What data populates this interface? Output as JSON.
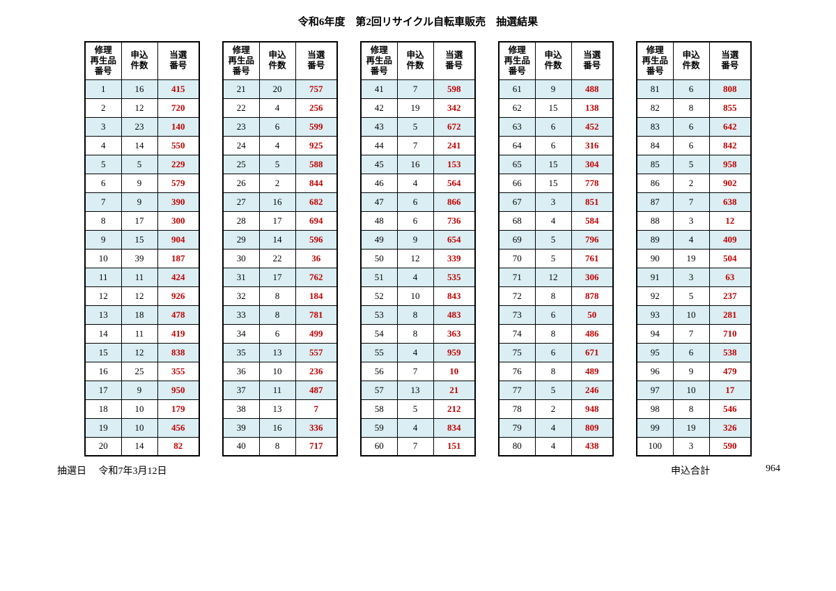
{
  "title": "令和6年度　第2回リサイクル自転車販売　抽選結果",
  "headers": {
    "col1": "修理\n再生品\n番号",
    "col2": "申込\n件数",
    "col3": "当選\n番号"
  },
  "footer": {
    "date_label": "抽選日",
    "date_value": "令和7年3月12日",
    "total_label": "申込合計",
    "total_value": "964"
  },
  "styles": {
    "shade_color": "#daeef3",
    "win_color": "#c00000",
    "border_color": "#000000",
    "background": "#ffffff"
  },
  "tables": [
    [
      [
        1,
        16,
        415
      ],
      [
        2,
        12,
        720
      ],
      [
        3,
        23,
        140
      ],
      [
        4,
        14,
        550
      ],
      [
        5,
        5,
        229
      ],
      [
        6,
        9,
        579
      ],
      [
        7,
        9,
        390
      ],
      [
        8,
        17,
        300
      ],
      [
        9,
        15,
        904
      ],
      [
        10,
        39,
        187
      ],
      [
        11,
        11,
        424
      ],
      [
        12,
        12,
        926
      ],
      [
        13,
        18,
        478
      ],
      [
        14,
        11,
        419
      ],
      [
        15,
        12,
        838
      ],
      [
        16,
        25,
        355
      ],
      [
        17,
        9,
        950
      ],
      [
        18,
        10,
        179
      ],
      [
        19,
        10,
        456
      ],
      [
        20,
        14,
        82
      ]
    ],
    [
      [
        21,
        20,
        757
      ],
      [
        22,
        4,
        256
      ],
      [
        23,
        6,
        599
      ],
      [
        24,
        4,
        925
      ],
      [
        25,
        5,
        588
      ],
      [
        26,
        2,
        844
      ],
      [
        27,
        16,
        682
      ],
      [
        28,
        17,
        694
      ],
      [
        29,
        14,
        596
      ],
      [
        30,
        22,
        36
      ],
      [
        31,
        17,
        762
      ],
      [
        32,
        8,
        184
      ],
      [
        33,
        8,
        781
      ],
      [
        34,
        6,
        499
      ],
      [
        35,
        13,
        557
      ],
      [
        36,
        10,
        236
      ],
      [
        37,
        11,
        487
      ],
      [
        38,
        13,
        7
      ],
      [
        39,
        16,
        336
      ],
      [
        40,
        8,
        717
      ]
    ],
    [
      [
        41,
        7,
        598
      ],
      [
        42,
        19,
        342
      ],
      [
        43,
        5,
        672
      ],
      [
        44,
        7,
        241
      ],
      [
        45,
        16,
        153
      ],
      [
        46,
        4,
        564
      ],
      [
        47,
        6,
        866
      ],
      [
        48,
        6,
        736
      ],
      [
        49,
        9,
        654
      ],
      [
        50,
        12,
        339
      ],
      [
        51,
        4,
        535
      ],
      [
        52,
        10,
        843
      ],
      [
        53,
        8,
        483
      ],
      [
        54,
        8,
        363
      ],
      [
        55,
        4,
        959
      ],
      [
        56,
        7,
        10
      ],
      [
        57,
        13,
        21
      ],
      [
        58,
        5,
        212
      ],
      [
        59,
        4,
        834
      ],
      [
        60,
        7,
        151
      ]
    ],
    [
      [
        61,
        9,
        488
      ],
      [
        62,
        15,
        138
      ],
      [
        63,
        6,
        452
      ],
      [
        64,
        6,
        316
      ],
      [
        65,
        15,
        304
      ],
      [
        66,
        15,
        778
      ],
      [
        67,
        3,
        851
      ],
      [
        68,
        4,
        584
      ],
      [
        69,
        5,
        796
      ],
      [
        70,
        5,
        761
      ],
      [
        71,
        12,
        306
      ],
      [
        72,
        8,
        878
      ],
      [
        73,
        6,
        50
      ],
      [
        74,
        8,
        486
      ],
      [
        75,
        6,
        671
      ],
      [
        76,
        8,
        489
      ],
      [
        77,
        5,
        246
      ],
      [
        78,
        2,
        948
      ],
      [
        79,
        4,
        809
      ],
      [
        80,
        4,
        438
      ]
    ],
    [
      [
        81,
        6,
        808
      ],
      [
        82,
        8,
        855
      ],
      [
        83,
        6,
        642
      ],
      [
        84,
        6,
        842
      ],
      [
        85,
        5,
        958
      ],
      [
        86,
        2,
        902
      ],
      [
        87,
        7,
        638
      ],
      [
        88,
        3,
        12
      ],
      [
        89,
        4,
        409
      ],
      [
        90,
        19,
        504
      ],
      [
        91,
        3,
        63
      ],
      [
        92,
        5,
        237
      ],
      [
        93,
        10,
        281
      ],
      [
        94,
        7,
        710
      ],
      [
        95,
        6,
        538
      ],
      [
        96,
        9,
        479
      ],
      [
        97,
        10,
        17
      ],
      [
        98,
        8,
        546
      ],
      [
        99,
        19,
        326
      ],
      [
        100,
        3,
        590
      ]
    ]
  ]
}
